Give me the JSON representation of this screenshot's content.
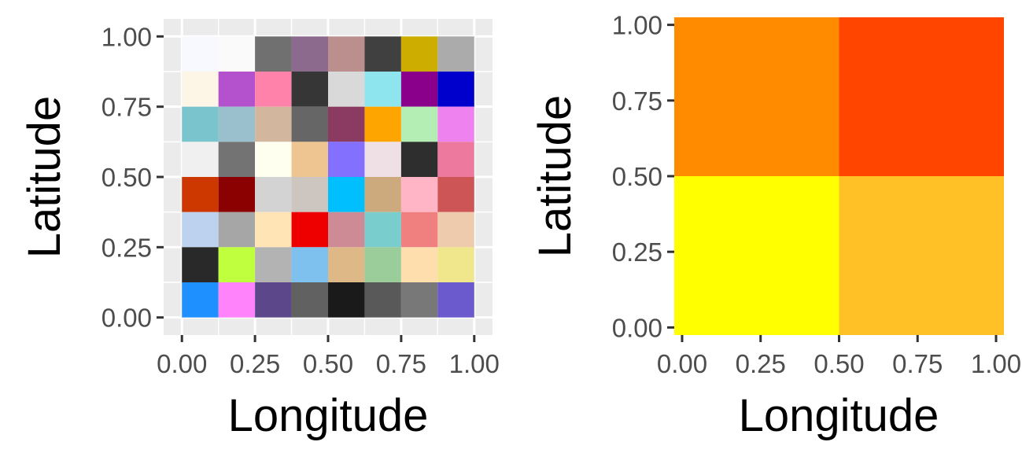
{
  "chart_data": [
    {
      "type": "heatmap",
      "title": "",
      "xlabel": "Longitude",
      "ylabel": "Latitude",
      "xlim": [
        -0.0625,
        1.0625
      ],
      "ylim": [
        -0.0625,
        1.0625
      ],
      "x_ticks": [
        "0.00",
        "0.25",
        "0.50",
        "0.75",
        "1.00"
      ],
      "y_ticks": [
        "0.00",
        "0.25",
        "0.50",
        "0.75",
        "1.00"
      ],
      "grid": true,
      "legend": "none",
      "x_edges": [
        0,
        0.125,
        0.25,
        0.375,
        0.5,
        0.625,
        0.75,
        0.875,
        1
      ],
      "y_edges": [
        1,
        0.875,
        0.75,
        0.625,
        0.5,
        0.375,
        0.25,
        0.125,
        0
      ],
      "cell_colors": [
        [
          "#f8f8ff",
          "#fafafa",
          "#707070",
          "#8b6a8e",
          "#bc8f8f",
          "#404040",
          "#cdad00",
          "#ababab"
        ],
        [
          "#fdf5e6",
          "#b452cd",
          "#ff82ab",
          "#363636",
          "#d9d9d9",
          "#8ee5ee",
          "#8b008b",
          "#0000cd"
        ],
        [
          "#7ac5cd",
          "#9ac0cd",
          "#d2b79e",
          "#666666",
          "#8b3a62",
          "#ffa500",
          "#b4eeb4",
          "#ee82ee"
        ],
        [
          "#f0f0f0",
          "#737373",
          "#fffff0",
          "#eec591",
          "#8470ff",
          "#efe0e5",
          "#2e2e2e",
          "#ee799f"
        ],
        [
          "#cd3700",
          "#8b0000",
          "#d3d3d3",
          "#cdc5bf",
          "#00bfff",
          "#cdaa7d",
          "#ffb5c5",
          "#cd5555"
        ],
        [
          "#bcd2ee",
          "#a6a6a6",
          "#ffe4b5",
          "#ee0000",
          "#cd8c95",
          "#79cdcd",
          "#f08080",
          "#eecbad"
        ],
        [
          "#292929",
          "#c0ff3e",
          "#b3b3b3",
          "#7ec0ee",
          "#deb887",
          "#9bcd9b",
          "#ffdead",
          "#f0e68c"
        ],
        [
          "#1e90ff",
          "#ff83fa",
          "#5d478b",
          "#616161",
          "#1a1a1a",
          "#595959",
          "#787878",
          "#6a5acd"
        ]
      ]
    },
    {
      "type": "heatmap",
      "title": "",
      "xlabel": "Longitude",
      "ylabel": "Latitude",
      "xlim": [
        -0.025,
        1.025
      ],
      "ylim": [
        -0.025,
        1.025
      ],
      "x_ticks": [
        "0.00",
        "0.25",
        "0.50",
        "0.75",
        "1.00"
      ],
      "y_ticks": [
        "0.00",
        "0.25",
        "0.50",
        "0.75",
        "1.00"
      ],
      "grid": true,
      "legend": "none",
      "x_edges": [
        -0.025,
        0.5,
        1.025
      ],
      "y_edges": [
        1.025,
        0.5,
        -0.025
      ],
      "cell_colors": [
        [
          "#ff8c00",
          "#ff4500"
        ],
        [
          "#ffff00",
          "#ffc125"
        ]
      ]
    }
  ]
}
